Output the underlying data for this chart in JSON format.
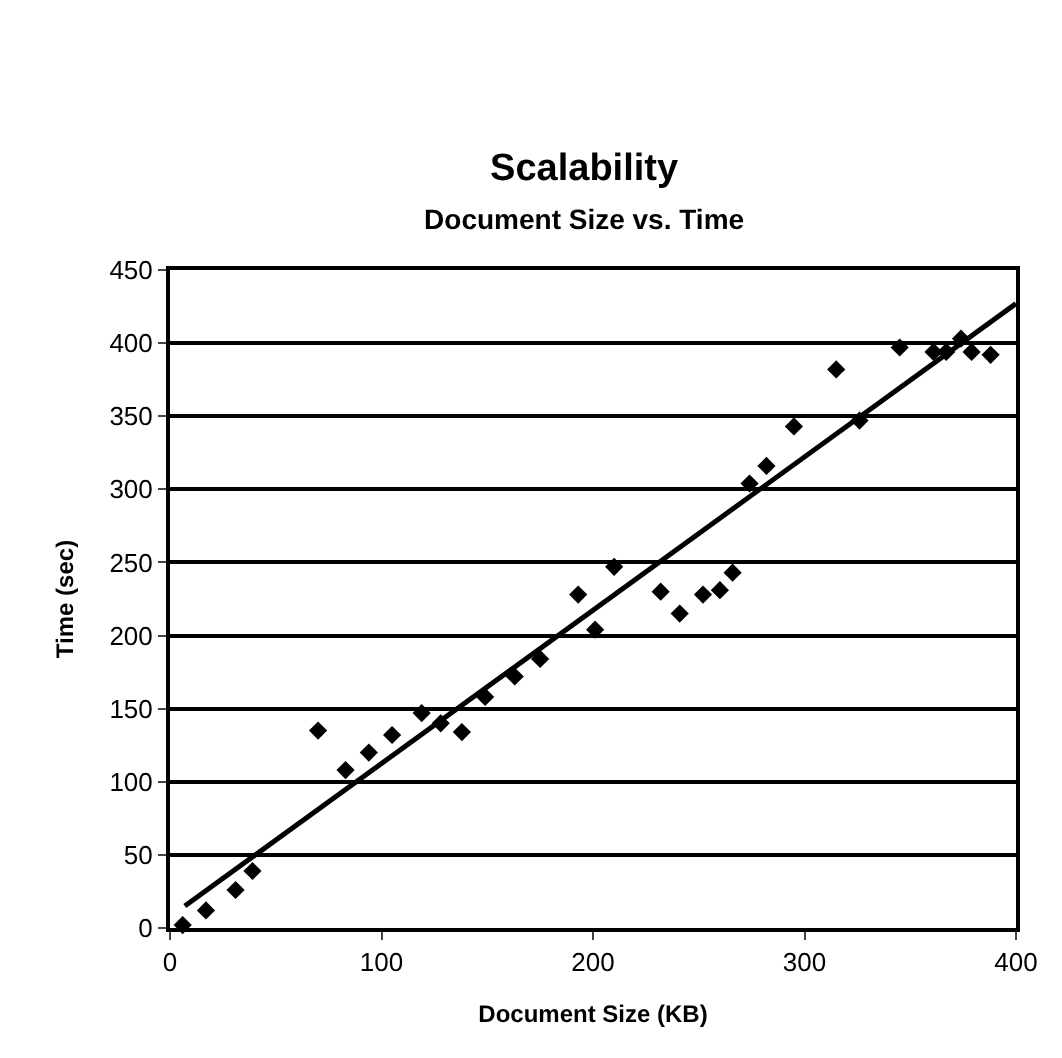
{
  "chart_data": {
    "type": "scatter",
    "title": "Scalability",
    "subtitle": "Document Size vs. Time",
    "xlabel": "Document Size (KB)",
    "ylabel": "Time (sec)",
    "xlim": [
      0,
      400
    ],
    "xticks": [
      0,
      100,
      200,
      300,
      400
    ],
    "ylim": [
      0,
      450
    ],
    "yticks": [
      0,
      50,
      100,
      150,
      200,
      250,
      300,
      350,
      400,
      450
    ],
    "grid": "y",
    "marker": "diamond",
    "series": [
      {
        "color": "#000000",
        "x": [
          6,
          17,
          31,
          39,
          70,
          83,
          94,
          105,
          119,
          128,
          138,
          149,
          163,
          175,
          193,
          201,
          210,
          232,
          241,
          252,
          260,
          266,
          274,
          282,
          295,
          315,
          326,
          345,
          361,
          367,
          374,
          379,
          388
        ],
        "values": [
          2,
          12,
          26,
          39,
          135,
          108,
          120,
          132,
          147,
          140,
          134,
          158,
          172,
          184,
          228,
          204,
          247,
          230,
          215,
          228,
          231,
          243,
          304,
          316,
          343,
          382,
          347,
          397,
          394,
          394,
          403,
          394,
          392
        ]
      },
      {
        "type": "line",
        "color": "#000000",
        "marker": "none",
        "x": [
          7,
          400
        ],
        "values": [
          15,
          427
        ]
      }
    ]
  }
}
